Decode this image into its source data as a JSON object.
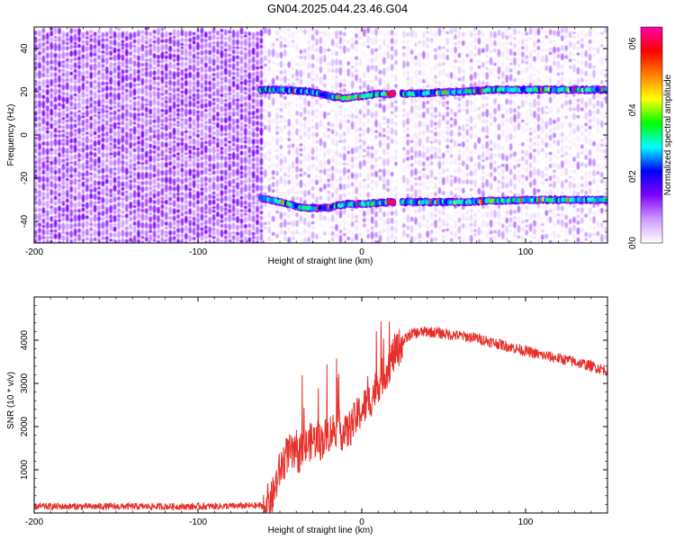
{
  "figure": {
    "title": "GN04.2025.044.23.46.G04"
  },
  "chart_data": [
    {
      "type": "heatmap",
      "title": "GN04.2025.044.23.46.G04",
      "xlabel": "Height of straight line (km)",
      "ylabel": "Frequency (Hz)",
      "xlim": [
        -200,
        150
      ],
      "ylim": [
        -50,
        50
      ],
      "xticks": [
        -200,
        -100,
        0,
        100
      ],
      "yticks": [
        -40,
        -20,
        0,
        20,
        40
      ],
      "colorbar": {
        "label": "Normalized spectral amplitude",
        "range": [
          0.0,
          0.65
        ],
        "ticks": [
          "0.0",
          "0.2",
          "0.4",
          "0.6"
        ],
        "colormap": [
          "#ffffff",
          "#cc99ff",
          "#7f00ff",
          "#0000ff",
          "#00ffff",
          "#00ff00",
          "#ffff00",
          "#ff8000",
          "#ff0000",
          "#ff00aa"
        ]
      },
      "tracks": [
        {
          "name": "",
          "start_x": -62,
          "points": [
            [
              -62,
              21
            ],
            [
              -50,
              21
            ],
            [
              -30,
              20
            ],
            [
              -20,
              18
            ],
            [
              -10,
              17
            ],
            [
              0,
              18
            ],
            [
              10,
              19
            ],
            [
              20,
              19
            ],
            [
              40,
              19.5
            ],
            [
              60,
              20
            ],
            [
              80,
              21
            ],
            [
              100,
              21
            ],
            [
              120,
              21
            ],
            [
              150,
              21
            ]
          ]
        },
        {
          "name": "",
          "start_x": -62,
          "points": [
            [
              -62,
              -29
            ],
            [
              -50,
              -31
            ],
            [
              -40,
              -33
            ],
            [
              -30,
              -34
            ],
            [
              -20,
              -33.5
            ],
            [
              -10,
              -32
            ],
            [
              0,
              -32
            ],
            [
              10,
              -31.5
            ],
            [
              20,
              -31
            ],
            [
              40,
              -31
            ],
            [
              60,
              -31
            ],
            [
              80,
              -30.5
            ],
            [
              100,
              -30
            ],
            [
              120,
              -30
            ],
            [
              150,
              -30
            ]
          ]
        }
      ],
      "gap_x": 22
    },
    {
      "type": "line",
      "xlabel": "Height of straight line (km)",
      "ylabel": "SNR (10 * v/v)",
      "xlim": [
        -200,
        150
      ],
      "ylim": [
        0,
        5000
      ],
      "xticks": [
        -200,
        -100,
        0,
        100
      ],
      "yticks": [
        1000,
        2000,
        3000,
        4000
      ],
      "series": [
        {
          "name": "",
          "color": "#e8302a",
          "x": [
            -200,
            -150,
            -100,
            -60,
            -55,
            -50,
            -45,
            -40,
            -35,
            -30,
            -25,
            -20,
            -15,
            -10,
            -5,
            0,
            5,
            10,
            15,
            20,
            25,
            30,
            40,
            50,
            60,
            70,
            80,
            90,
            100,
            110,
            120,
            130,
            140,
            150
          ],
          "y": [
            150,
            150,
            150,
            170,
            300,
            1000,
            1400,
            1300,
            1500,
            1700,
            1650,
            1850,
            2000,
            1800,
            2100,
            2400,
            2600,
            3000,
            3300,
            3700,
            3950,
            4150,
            4200,
            4150,
            4100,
            4050,
            3950,
            3850,
            3750,
            3650,
            3580,
            3500,
            3400,
            3300
          ]
        }
      ]
    }
  ]
}
